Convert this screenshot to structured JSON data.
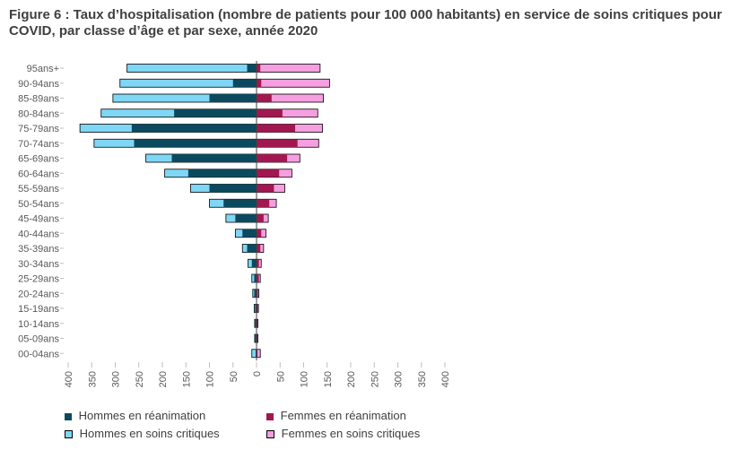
{
  "title": "Figure 6 : Taux d’hospitalisation (nombre de patients pour 100 000 habitants) en service de soins critiques pour COVID, par classe d’âge et par sexe, année 2020",
  "colors": {
    "men_icu": "#0b4a5e",
    "men_critical": "#7fd6f5",
    "women_icu": "#a0184f",
    "women_critical": "#f59ee0",
    "axis": "#bfbfbf"
  },
  "chart_data": {
    "type": "bar",
    "orientation": "horizontal-population-pyramid",
    "categories": [
      "95ans+",
      "90-94ans",
      "85-89ans",
      "80-84ans",
      "75-79ans",
      "70-74ans",
      "65-69ans",
      "60-64ans",
      "55-59ans",
      "50-54ans",
      "45-49ans",
      "40-44ans",
      "35-39ans",
      "30-34ans",
      "25-29ans",
      "20-24ans",
      "15-19ans",
      "10-14ans",
      "05-09ans",
      "00-04ans"
    ],
    "x_ticks": [
      "400",
      "350",
      "300",
      "250",
      "200",
      "150",
      "100",
      "50",
      "0",
      "50",
      "100",
      "150",
      "200",
      "250",
      "300",
      "350",
      "400"
    ],
    "xlim": [
      -400,
      400
    ],
    "series": [
      {
        "name": "Hommes en réanimation",
        "side": "left",
        "stack": "inner",
        "values": [
          20,
          50,
          100,
          175,
          265,
          260,
          180,
          145,
          100,
          70,
          45,
          30,
          20,
          10,
          5,
          5,
          3,
          3,
          3,
          2
        ]
      },
      {
        "name": "Hommes en soins critiques",
        "side": "left",
        "stack": "outer",
        "values": [
          275,
          290,
          305,
          330,
          375,
          345,
          235,
          195,
          140,
          100,
          65,
          45,
          30,
          18,
          10,
          8,
          5,
          4,
          4,
          10
        ]
      },
      {
        "name": "Femmes en réanimation",
        "side": "right",
        "stack": "inner",
        "values": [
          8,
          10,
          32,
          55,
          82,
          87,
          65,
          48,
          37,
          27,
          15,
          10,
          8,
          5,
          5,
          3,
          3,
          2,
          2,
          2
        ]
      },
      {
        "name": "Femmes en soins critiques",
        "side": "right",
        "stack": "outer",
        "values": [
          135,
          155,
          142,
          130,
          140,
          132,
          92,
          75,
          60,
          42,
          25,
          20,
          15,
          10,
          8,
          5,
          4,
          3,
          3,
          8
        ]
      }
    ],
    "legend": [
      "Hommes en réanimation",
      "Femmes en réanimation",
      "Hommes en soins critiques",
      "Femmes en soins critiques"
    ],
    "legend_position": "bottom",
    "grid": false
  }
}
